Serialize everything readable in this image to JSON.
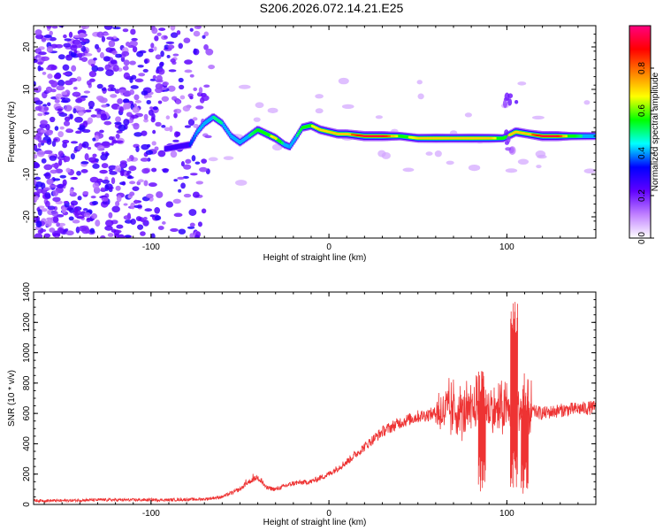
{
  "title": "S206.2026.072.14.21.E25",
  "chart_data": [
    {
      "type": "heatmap",
      "name": "spectrogram",
      "xlabel": "Height of straight line (km)",
      "ylabel": "Frequency (Hz)",
      "xlim": [
        -166,
        150
      ],
      "ylim": [
        -25,
        25
      ],
      "xticks": [
        -100,
        0,
        100
      ],
      "yticks": [
        -20,
        -10,
        0,
        10,
        20
      ],
      "colorbar": {
        "label": "Normalized spectral amplitude",
        "range": [
          0,
          1
        ],
        "ticks": [
          "0.0",
          "0.2",
          "0.4",
          "0.6",
          "0.8"
        ],
        "tick_values": [
          0,
          0.2,
          0.4,
          0.6,
          0.8
        ],
        "colors": [
          "#ffffff",
          "#c080ff",
          "#6000ff",
          "#0000ff",
          "#00ffff",
          "#00ff00",
          "#ffff00",
          "#ff8000",
          "#ff0000",
          "#ff0080"
        ]
      },
      "signal_track": [
        {
          "x": -92,
          "y": -4,
          "amp": 0.25
        },
        {
          "x": -85,
          "y": -3.5,
          "amp": 0.3
        },
        {
          "x": -78,
          "y": -3,
          "amp": 0.35
        },
        {
          "x": -74,
          "y": 0,
          "amp": 0.4
        },
        {
          "x": -70,
          "y": 2,
          "amp": 0.45
        },
        {
          "x": -65,
          "y": 3.5,
          "amp": 0.5
        },
        {
          "x": -60,
          "y": 2,
          "amp": 0.5
        },
        {
          "x": -55,
          "y": -1,
          "amp": 0.45
        },
        {
          "x": -50,
          "y": -2.5,
          "amp": 0.45
        },
        {
          "x": -45,
          "y": -1,
          "amp": 0.5
        },
        {
          "x": -40,
          "y": 0.5,
          "amp": 0.55
        },
        {
          "x": -35,
          "y": -0.5,
          "amp": 0.6
        },
        {
          "x": -30,
          "y": -1.5,
          "amp": 0.7
        },
        {
          "x": -25,
          "y": -3,
          "amp": 0.45
        },
        {
          "x": -22,
          "y": -3.5,
          "amp": 0.4
        },
        {
          "x": -18,
          "y": -1,
          "amp": 0.5
        },
        {
          "x": -15,
          "y": 1,
          "amp": 0.55
        },
        {
          "x": -10,
          "y": 1.5,
          "amp": 0.65
        },
        {
          "x": -5,
          "y": 0.5,
          "amp": 0.7
        },
        {
          "x": 0,
          "y": 0,
          "amp": 0.7
        },
        {
          "x": 5,
          "y": -0.5,
          "amp": 0.75
        },
        {
          "x": 10,
          "y": -0.5,
          "amp": 0.75
        },
        {
          "x": 20,
          "y": -1,
          "amp": 0.95
        },
        {
          "x": 30,
          "y": -1,
          "amp": 0.95
        },
        {
          "x": 40,
          "y": -1,
          "amp": 0.6
        },
        {
          "x": 50,
          "y": -1.5,
          "amp": 0.7
        },
        {
          "x": 60,
          "y": -1.5,
          "amp": 0.8
        },
        {
          "x": 70,
          "y": -1.5,
          "amp": 0.75
        },
        {
          "x": 80,
          "y": -1.5,
          "amp": 0.8
        },
        {
          "x": 90,
          "y": -1.5,
          "amp": 0.75
        },
        {
          "x": 98,
          "y": -1.5,
          "amp": 0.55
        },
        {
          "x": 105,
          "y": 0,
          "amp": 0.8
        },
        {
          "x": 112,
          "y": -0.5,
          "amp": 0.75
        },
        {
          "x": 120,
          "y": -1,
          "amp": 0.95
        },
        {
          "x": 128,
          "y": -1,
          "amp": 0.95
        },
        {
          "x": 135,
          "y": -1,
          "amp": 0.6
        },
        {
          "x": 142,
          "y": -1,
          "amp": 0.5
        },
        {
          "x": 150,
          "y": -1,
          "amp": 0.45
        }
      ],
      "noise_region": {
        "x_from": -166,
        "x_to": -66,
        "amp_range": [
          0.1,
          0.3
        ]
      }
    },
    {
      "type": "line",
      "name": "snr",
      "xlabel": "Height of straight line (km)",
      "ylabel": "SNR (10 * v/v)",
      "xlim": [
        -166,
        150
      ],
      "ylim": [
        0,
        1400
      ],
      "xticks": [
        -100,
        0,
        100
      ],
      "yticks": [
        0,
        200,
        400,
        600,
        800,
        1000,
        1200,
        1400
      ],
      "color": "#ee3333",
      "series": [
        {
          "name": "SNR",
          "x": [
            -166,
            -150,
            -130,
            -110,
            -90,
            -70,
            -60,
            -50,
            -45,
            -40,
            -35,
            -30,
            -20,
            -10,
            0,
            10,
            20,
            30,
            40,
            50,
            60,
            70,
            80,
            85,
            88,
            92,
            100,
            104,
            106,
            108,
            110,
            112,
            120,
            130,
            140,
            150
          ],
          "y": [
            25,
            25,
            30,
            30,
            30,
            35,
            50,
            100,
            150,
            180,
            110,
            100,
            140,
            150,
            200,
            280,
            380,
            480,
            540,
            580,
            600,
            620,
            600,
            700,
            900,
            600,
            700,
            1400,
            300,
            900,
            600,
            620,
            600,
            620,
            630,
            640
          ]
        }
      ],
      "spikes": [
        {
          "x": 86,
          "y_min": 80,
          "y_max": 940
        },
        {
          "x": 104,
          "y_min": 100,
          "y_max": 1410
        },
        {
          "x": 110,
          "y_min": 60,
          "y_max": 880
        }
      ]
    }
  ]
}
